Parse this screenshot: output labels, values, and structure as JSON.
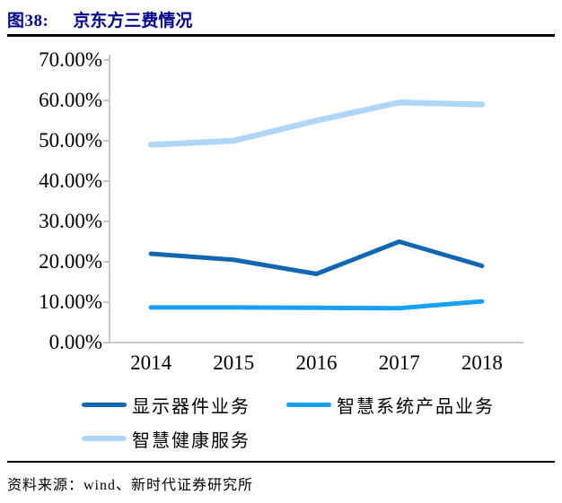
{
  "title": {
    "figure_label": "图38:",
    "text": "京东方三费情况"
  },
  "source": {
    "text": "资料来源：wind、新时代证券研究所"
  },
  "colors": {
    "title_text": "#00008B",
    "axis": "#C8C8C8",
    "rule": "#000000",
    "label_text": "#000000"
  },
  "chart_data": {
    "type": "line",
    "title": "京东方三费情况",
    "categories": [
      "2014",
      "2015",
      "2016",
      "2017",
      "2018"
    ],
    "series": [
      {
        "name": "显示器件业务",
        "color": "#1167B1",
        "values": [
          22.0,
          20.5,
          17.0,
          25.0,
          19.0
        ]
      },
      {
        "name": "智慧系统产品业务",
        "color": "#18A0F4",
        "values": [
          8.7,
          8.7,
          8.6,
          8.5,
          10.2
        ]
      },
      {
        "name": "智慧健康服务",
        "color": "#AED6F7",
        "values": [
          49.0,
          50.0,
          55.0,
          59.5,
          59.0
        ]
      }
    ],
    "xlabel": "",
    "ylabel": "",
    "ylim": [
      0,
      70
    ],
    "ytick_step": 10,
    "ytick_labels": [
      "0.00%",
      "10.00%",
      "20.00%",
      "30.00%",
      "40.00%",
      "50.00%",
      "60.00%",
      "70.00%"
    ],
    "grid": false,
    "legend_position": "bottom"
  }
}
